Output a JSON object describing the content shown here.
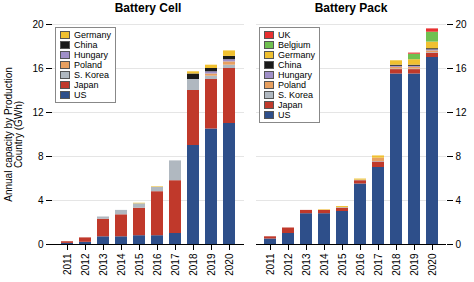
{
  "chart_data": [
    {
      "type": "bar",
      "stacked": true,
      "title": "Battery Cell",
      "categories": [
        "2011",
        "2012",
        "2013",
        "2014",
        "2015",
        "2016",
        "2017",
        "2018",
        "2019",
        "2020"
      ],
      "series": [
        {
          "name": "US",
          "color": "#2e4f8a",
          "values": [
            0.1,
            0.2,
            0.7,
            0.7,
            0.8,
            0.8,
            1.0,
            9.0,
            10.5,
            11.0
          ]
        },
        {
          "name": "Japan",
          "color": "#c0392b",
          "values": [
            0.15,
            0.4,
            1.6,
            2.0,
            2.5,
            4.0,
            4.8,
            5.0,
            4.5,
            5.0
          ]
        },
        {
          "name": "S. Korea",
          "color": "#b0b8c0",
          "values": [
            0.0,
            0.0,
            0.2,
            0.4,
            0.4,
            0.4,
            1.8,
            1.0,
            0.3,
            0.3
          ]
        },
        {
          "name": "Poland",
          "color": "#e8a060",
          "values": [
            0.0,
            0.0,
            0.0,
            0.0,
            0.0,
            0.0,
            0.0,
            0.0,
            0.2,
            0.3
          ]
        },
        {
          "name": "Hungary",
          "color": "#a090c8",
          "values": [
            0.0,
            0.0,
            0.0,
            0.0,
            0.0,
            0.0,
            0.0,
            0.0,
            0.2,
            0.2
          ]
        },
        {
          "name": "China",
          "color": "#1a1a1a",
          "values": [
            0.0,
            0.0,
            0.0,
            0.0,
            0.0,
            0.0,
            0.0,
            0.5,
            0.3,
            0.3
          ]
        },
        {
          "name": "Germany",
          "color": "#f0c030",
          "values": [
            0.0,
            0.0,
            0.0,
            0.0,
            0.05,
            0.05,
            0.0,
            0.2,
            0.3,
            0.5
          ]
        }
      ],
      "ylim": [
        0,
        20
      ],
      "yticks": [
        0,
        4,
        8,
        12,
        16,
        20
      ],
      "ylabel": "Annual capacity by Production\nCountry (GWh)",
      "grid": true,
      "legend": "upper left"
    },
    {
      "type": "bar",
      "stacked": true,
      "title": "Battery Pack",
      "categories": [
        "2011",
        "2012",
        "2013",
        "2014",
        "2015",
        "2016",
        "2017",
        "2018",
        "2019",
        "2020"
      ],
      "series": [
        {
          "name": "US",
          "color": "#2e4f8a",
          "values": [
            0.5,
            1.0,
            2.8,
            2.8,
            3.0,
            5.5,
            7.0,
            15.5,
            15.5,
            17.0
          ]
        },
        {
          "name": "Japan",
          "color": "#c0392b",
          "values": [
            0.2,
            0.5,
            0.3,
            0.3,
            0.3,
            0.3,
            0.5,
            0.4,
            0.4,
            0.4
          ]
        },
        {
          "name": "S. Korea",
          "color": "#b0b8c0",
          "values": [
            0.0,
            0.0,
            0.0,
            0.0,
            0.05,
            0.05,
            0.05,
            0.05,
            0.05,
            0.05
          ]
        },
        {
          "name": "Poland",
          "color": "#e8a060",
          "values": [
            0.0,
            0.0,
            0.0,
            0.0,
            0.0,
            0.0,
            0.3,
            0.15,
            0.15,
            0.15
          ]
        },
        {
          "name": "Hungary",
          "color": "#a090c8",
          "values": [
            0.0,
            0.0,
            0.0,
            0.0,
            0.0,
            0.0,
            0.0,
            0.1,
            0.1,
            0.1
          ]
        },
        {
          "name": "China",
          "color": "#1a1a1a",
          "values": [
            0.0,
            0.0,
            0.0,
            0.0,
            0.0,
            0.0,
            0.0,
            0.1,
            0.1,
            0.1
          ]
        },
        {
          "name": "Germany",
          "color": "#f0c030",
          "values": [
            0.0,
            0.0,
            0.0,
            0.05,
            0.1,
            0.1,
            0.2,
            0.4,
            0.5,
            0.6
          ]
        },
        {
          "name": "Belgium",
          "color": "#70c050",
          "values": [
            0.0,
            0.0,
            0.0,
            0.0,
            0.0,
            0.0,
            0.0,
            0.0,
            0.5,
            0.9
          ]
        },
        {
          "name": "UK",
          "color": "#e83030",
          "values": [
            0.0,
            0.0,
            0.0,
            0.0,
            0.0,
            0.0,
            0.0,
            0.0,
            0.1,
            0.3
          ]
        }
      ],
      "ylim": [
        0,
        20
      ],
      "yticks": [
        0,
        4,
        8,
        12,
        16,
        20
      ],
      "grid": true,
      "legend": "upper left"
    }
  ]
}
